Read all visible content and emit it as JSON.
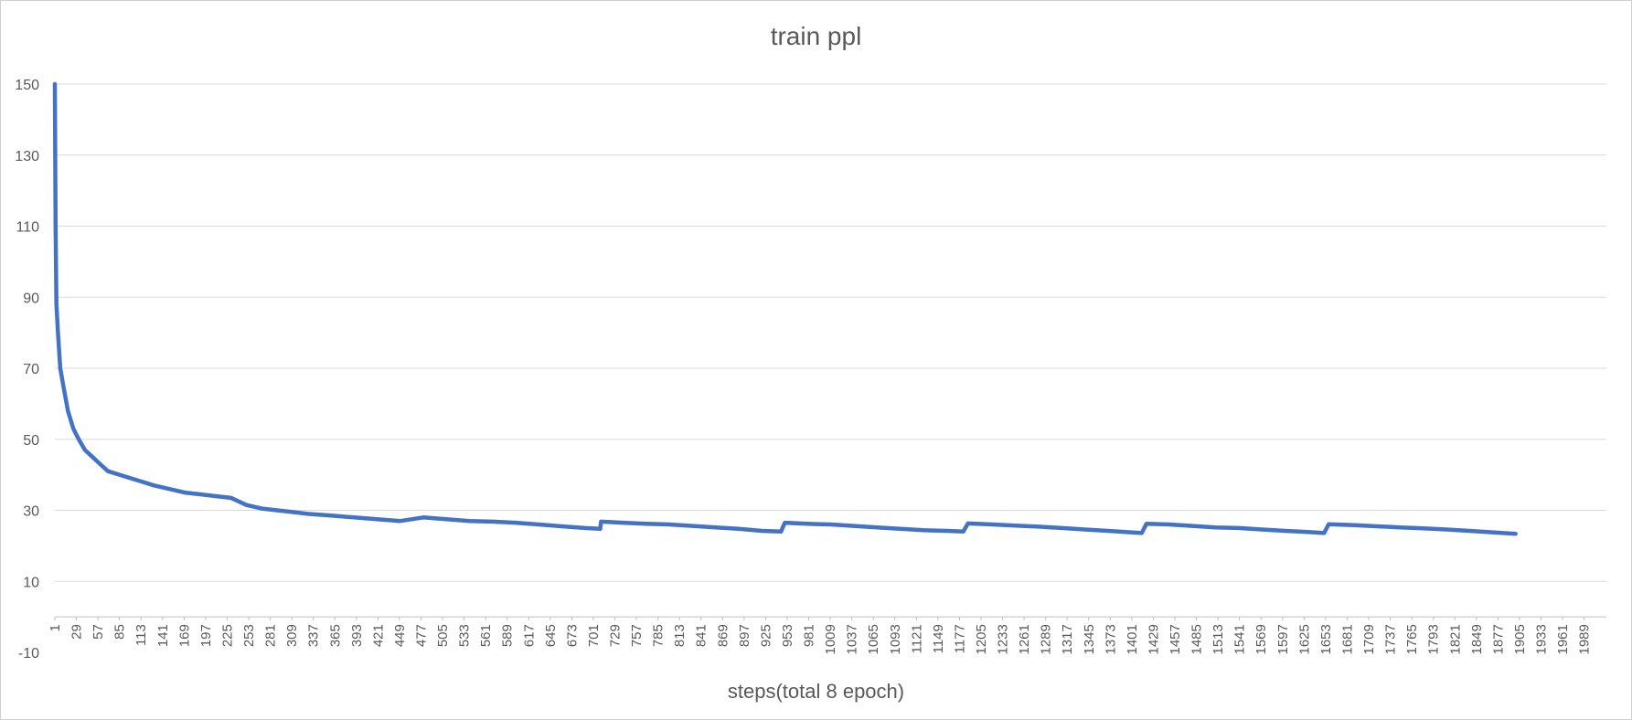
{
  "chart_data": {
    "type": "line",
    "title": "train ppl",
    "xlabel": "steps(total 8 epoch)",
    "ylabel": "",
    "ylim": [
      -10,
      150
    ],
    "yticks": [
      -10,
      10,
      30,
      50,
      70,
      90,
      110,
      130,
      150
    ],
    "xlim": [
      1,
      2018
    ],
    "xticks": [
      1,
      29,
      57,
      85,
      113,
      141,
      169,
      197,
      225,
      253,
      281,
      309,
      337,
      365,
      393,
      421,
      449,
      477,
      505,
      533,
      561,
      589,
      617,
      645,
      673,
      701,
      729,
      757,
      785,
      813,
      841,
      869,
      897,
      925,
      953,
      981,
      1009,
      1037,
      1065,
      1093,
      1121,
      1149,
      1177,
      1205,
      1233,
      1261,
      1289,
      1317,
      1345,
      1373,
      1401,
      1429,
      1457,
      1485,
      1513,
      1541,
      1569,
      1597,
      1625,
      1653,
      1681,
      1709,
      1737,
      1765,
      1793,
      1821,
      1849,
      1877,
      1905,
      1933,
      1961,
      1989
    ],
    "grid": true,
    "color": "#4472C4",
    "series": [
      {
        "name": "",
        "x": [
          1,
          2,
          3,
          5,
          8,
          12,
          18,
          25,
          32,
          40,
          50,
          60,
          70,
          85,
          100,
          115,
          130,
          150,
          170,
          190,
          210,
          230,
          250,
          270,
          290,
          310,
          330,
          360,
          390,
          420,
          450,
          480,
          510,
          540,
          570,
          600,
          630,
          660,
          690,
          710,
          711,
          740,
          770,
          800,
          830,
          860,
          890,
          920,
          945,
          950,
          980,
          1010,
          1040,
          1070,
          1100,
          1130,
          1160,
          1182,
          1188,
          1220,
          1250,
          1280,
          1310,
          1340,
          1370,
          1400,
          1414,
          1420,
          1450,
          1480,
          1510,
          1540,
          1570,
          1600,
          1630,
          1651,
          1657,
          1690,
          1720,
          1750,
          1780,
          1810,
          1840,
          1870,
          1900
        ],
        "values": [
          150,
          110,
          88,
          80,
          70,
          65,
          58,
          53,
          50,
          47,
          45,
          43,
          41,
          40,
          39,
          38,
          37,
          36,
          35,
          34.5,
          34,
          33.5,
          31.5,
          30.5,
          30,
          29.5,
          29,
          28.5,
          28,
          27.5,
          27,
          28,
          27.5,
          27,
          26.8,
          26.5,
          26,
          25.5,
          25,
          24.8,
          26.8,
          26.5,
          26.2,
          26,
          25.6,
          25.2,
          24.8,
          24.2,
          24,
          26.5,
          26.2,
          26,
          25.6,
          25.2,
          24.8,
          24.4,
          24.2,
          24,
          26.3,
          26,
          25.7,
          25.4,
          25,
          24.6,
          24.2,
          23.8,
          23.6,
          26.2,
          26,
          25.6,
          25.2,
          25,
          24.6,
          24.2,
          23.9,
          23.6,
          26.1,
          25.8,
          25.5,
          25.2,
          24.9,
          24.6,
          24.2,
          23.8,
          23.4
        ]
      }
    ]
  }
}
